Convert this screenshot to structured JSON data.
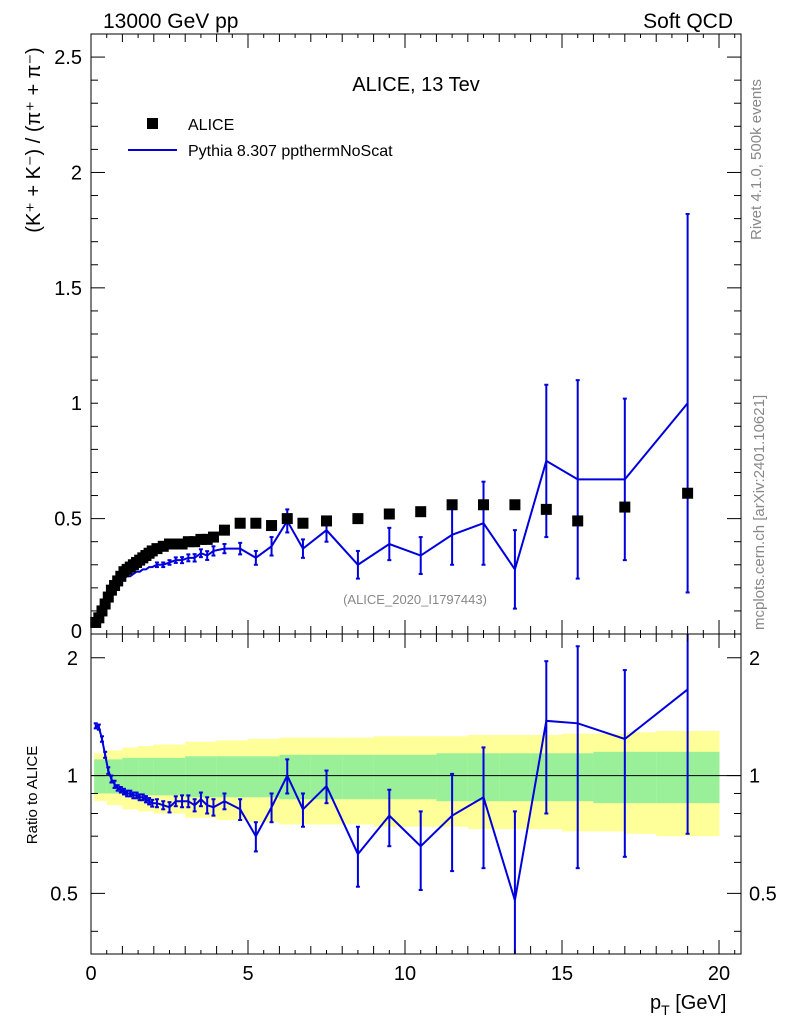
{
  "header": {
    "left": "13000 GeV pp",
    "right": "Soft QCD"
  },
  "side": {
    "rivet": "Rivet 4.1.0,  500k events",
    "mcplots": "mcplots.cern.ch [arXiv:2401.10621]"
  },
  "colors": {
    "mc": "#0000dd",
    "band_inner": "#99f099",
    "band_outer": "#ffff99"
  },
  "chart_data": {
    "type": "scatter",
    "title": "ALICE, 13 Tev",
    "analysis_tag": "(ALICE_2020_I1797443)",
    "xlabel_main": "p",
    "xlabel_sub": "T",
    "xlabel_unit": " [GeV]",
    "ylabel_top": "(K⁺ + K⁻) / (π⁺ + π⁻)",
    "ylabel_bottom": "Ratio to ALICE",
    "xlim": [
      0,
      20.7
    ],
    "ylim_top": [
      0,
      2.6
    ],
    "ylim_bottom": [
      0.35,
      2.3
    ],
    "x_ticks": [
      0,
      5,
      10,
      15,
      20
    ],
    "x_tick_labels": [
      "0",
      "5",
      "10",
      "15",
      "20"
    ],
    "y_ticks_top": [
      0,
      0.5,
      1,
      1.5,
      2,
      2.5
    ],
    "y_tick_labels_top": [
      "0",
      "0.5",
      "1",
      "1.5",
      "2",
      "2.5"
    ],
    "y_ticks_bottom": [
      0.5,
      1,
      2
    ],
    "y_tick_labels_bottom": [
      "0.5",
      "1",
      "2"
    ],
    "legend": [
      {
        "name": "ALICE",
        "marker": "square",
        "color": "#000000"
      },
      {
        "name": "Pythia 8.307 ppthermNoScat",
        "marker": "line",
        "color": "#0000dd"
      }
    ],
    "data": {
      "name": "ALICE",
      "x": [
        0.15,
        0.25,
        0.35,
        0.45,
        0.55,
        0.65,
        0.75,
        0.85,
        0.95,
        1.05,
        1.15,
        1.25,
        1.35,
        1.45,
        1.55,
        1.65,
        1.75,
        1.85,
        1.95,
        2.1,
        2.3,
        2.5,
        2.7,
        2.9,
        3.1,
        3.3,
        3.5,
        3.7,
        3.9,
        4.25,
        4.75,
        5.25,
        5.75,
        6.25,
        6.75,
        7.5,
        8.5,
        9.5,
        10.5,
        11.5,
        12.5,
        13.5,
        14.5,
        15.5,
        17,
        19
      ],
      "y": [
        0.05,
        0.07,
        0.1,
        0.13,
        0.16,
        0.19,
        0.21,
        0.23,
        0.25,
        0.27,
        0.28,
        0.29,
        0.3,
        0.31,
        0.32,
        0.33,
        0.34,
        0.35,
        0.36,
        0.37,
        0.38,
        0.39,
        0.39,
        0.39,
        0.4,
        0.4,
        0.41,
        0.41,
        0.42,
        0.45,
        0.48,
        0.48,
        0.47,
        0.5,
        0.48,
        0.49,
        0.5,
        0.52,
        0.53,
        0.56,
        0.56,
        0.56,
        0.54,
        0.49,
        0.55,
        0.61
      ]
    },
    "mc": {
      "name": "Pythia 8.307 ppthermNoScat",
      "x": [
        0.15,
        0.25,
        0.35,
        0.45,
        0.55,
        0.65,
        0.75,
        0.85,
        0.95,
        1.05,
        1.15,
        1.25,
        1.35,
        1.45,
        1.55,
        1.65,
        1.75,
        1.85,
        1.95,
        2.1,
        2.3,
        2.5,
        2.7,
        2.9,
        3.1,
        3.3,
        3.5,
        3.7,
        3.9,
        4.25,
        4.75,
        5.25,
        5.75,
        6.25,
        6.75,
        7.5,
        8.5,
        9.5,
        10.5,
        11.5,
        12.5,
        13.5,
        14.5,
        15.5,
        17,
        19
      ],
      "y": [
        0.07,
        0.09,
        0.12,
        0.14,
        0.16,
        0.18,
        0.19,
        0.21,
        0.22,
        0.24,
        0.25,
        0.25,
        0.26,
        0.27,
        0.27,
        0.28,
        0.28,
        0.29,
        0.29,
        0.3,
        0.3,
        0.31,
        0.32,
        0.32,
        0.33,
        0.33,
        0.35,
        0.34,
        0.36,
        0.37,
        0.37,
        0.33,
        0.38,
        0.49,
        0.37,
        0.45,
        0.3,
        0.39,
        0.34,
        0.43,
        0.48,
        0.28,
        0.75,
        0.67,
        0.67,
        1.0
      ],
      "yerr": [
        0.005,
        0.005,
        0.005,
        0.005,
        0.005,
        0.005,
        0.005,
        0.005,
        0.005,
        0.005,
        0.006,
        0.006,
        0.006,
        0.006,
        0.007,
        0.007,
        0.007,
        0.007,
        0.008,
        0.01,
        0.01,
        0.01,
        0.012,
        0.013,
        0.015,
        0.016,
        0.017,
        0.019,
        0.02,
        0.02,
        0.025,
        0.03,
        0.04,
        0.05,
        0.04,
        0.05,
        0.06,
        0.07,
        0.08,
        0.13,
        0.18,
        0.17,
        0.33,
        0.43,
        0.35,
        0.82
      ]
    },
    "ratio": {
      "x": [
        0.15,
        0.25,
        0.35,
        0.45,
        0.55,
        0.65,
        0.75,
        0.85,
        0.95,
        1.05,
        1.15,
        1.25,
        1.35,
        1.45,
        1.55,
        1.65,
        1.75,
        1.85,
        1.95,
        2.1,
        2.3,
        2.5,
        2.7,
        2.9,
        3.1,
        3.3,
        3.5,
        3.7,
        3.9,
        4.25,
        4.75,
        5.25,
        5.75,
        6.25,
        6.75,
        7.5,
        8.5,
        9.5,
        10.5,
        11.5,
        12.5,
        13.5,
        14.5,
        15.5,
        17,
        19
      ],
      "y": [
        1.34,
        1.33,
        1.24,
        1.13,
        1.03,
        0.98,
        0.95,
        0.93,
        0.92,
        0.91,
        0.9,
        0.9,
        0.89,
        0.89,
        0.88,
        0.88,
        0.87,
        0.86,
        0.85,
        0.85,
        0.84,
        0.83,
        0.86,
        0.86,
        0.86,
        0.84,
        0.87,
        0.84,
        0.83,
        0.86,
        0.82,
        0.7,
        0.83,
        1.0,
        0.82,
        0.94,
        0.63,
        0.79,
        0.66,
        0.79,
        0.88,
        0.48,
        1.38,
        1.36,
        1.24,
        1.66
      ],
      "yerr": [
        0.02,
        0.02,
        0.02,
        0.02,
        0.02,
        0.02,
        0.02,
        0.015,
        0.015,
        0.015,
        0.015,
        0.015,
        0.015,
        0.015,
        0.015,
        0.015,
        0.016,
        0.016,
        0.017,
        0.02,
        0.02,
        0.025,
        0.025,
        0.03,
        0.03,
        0.03,
        0.035,
        0.04,
        0.04,
        0.04,
        0.05,
        0.06,
        0.07,
        0.1,
        0.08,
        0.09,
        0.11,
        0.13,
        0.15,
        0.22,
        0.3,
        0.33,
        0.58,
        0.78,
        0.62,
        0.95
      ]
    },
    "band": {
      "edges": [
        0.1,
        0.5,
        1,
        1.5,
        2,
        3,
        4,
        5,
        6,
        7,
        8,
        9,
        10,
        11,
        12,
        13,
        14,
        15,
        16,
        17,
        18,
        19,
        20
      ],
      "inner": [
        0.1,
        0.1,
        0.11,
        0.11,
        0.11,
        0.12,
        0.12,
        0.12,
        0.13,
        0.13,
        0.13,
        0.13,
        0.13,
        0.14,
        0.14,
        0.14,
        0.14,
        0.14,
        0.15,
        0.15,
        0.15,
        0.15
      ],
      "outer": [
        0.14,
        0.16,
        0.18,
        0.19,
        0.2,
        0.22,
        0.23,
        0.24,
        0.25,
        0.25,
        0.25,
        0.26,
        0.26,
        0.26,
        0.27,
        0.27,
        0.27,
        0.28,
        0.28,
        0.29,
        0.3,
        0.3
      ]
    }
  }
}
